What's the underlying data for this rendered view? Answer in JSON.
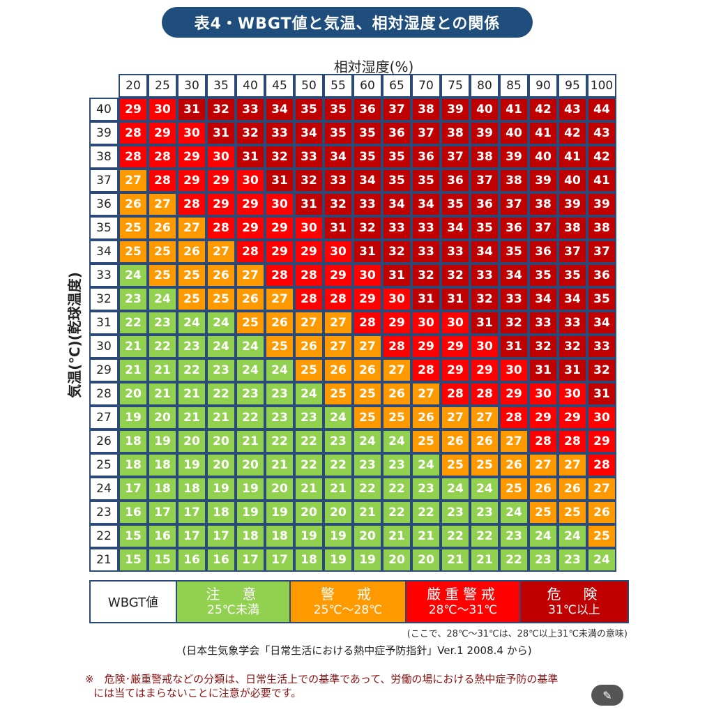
{
  "title": "表4・WBGT値と気温、相対湿度との関係",
  "x_axis_title": "相対湿度(%)",
  "y_axis_title": "気温(℃)(乾球温度)",
  "colors": {
    "caution": "#92d050",
    "warning": "#ff9900",
    "severe": "#ff0000",
    "danger": "#c00000",
    "grid_border": "#2b4a78",
    "title_bg": "#1f4e7c"
  },
  "chart_data": {
    "type": "heatmap",
    "title": "表4・WBGT値と気温、相対湿度との関係",
    "xlabel": "相対湿度(%)",
    "ylabel": "気温(℃)(乾球温度)",
    "x": [
      20,
      25,
      30,
      35,
      40,
      45,
      50,
      55,
      60,
      65,
      70,
      75,
      80,
      85,
      90,
      95,
      100
    ],
    "y": [
      40,
      39,
      38,
      37,
      36,
      35,
      34,
      33,
      32,
      31,
      30,
      29,
      28,
      27,
      26,
      25,
      24,
      23,
      22,
      21
    ],
    "values": [
      [
        29,
        30,
        31,
        32,
        33,
        34,
        35,
        35,
        36,
        37,
        38,
        39,
        40,
        41,
        42,
        43,
        44
      ],
      [
        28,
        29,
        30,
        31,
        32,
        33,
        34,
        35,
        35,
        36,
        37,
        38,
        39,
        40,
        41,
        42,
        43
      ],
      [
        28,
        28,
        29,
        30,
        31,
        32,
        33,
        34,
        35,
        35,
        36,
        37,
        38,
        39,
        40,
        41,
        42
      ],
      [
        27,
        28,
        29,
        29,
        30,
        31,
        32,
        33,
        34,
        35,
        35,
        36,
        37,
        38,
        39,
        40,
        41
      ],
      [
        26,
        27,
        28,
        29,
        29,
        30,
        31,
        32,
        33,
        34,
        34,
        35,
        36,
        37,
        38,
        39,
        39
      ],
      [
        25,
        26,
        27,
        28,
        29,
        29,
        30,
        31,
        32,
        33,
        33,
        34,
        35,
        36,
        37,
        38,
        38
      ],
      [
        25,
        25,
        26,
        27,
        28,
        29,
        29,
        30,
        31,
        32,
        33,
        33,
        34,
        35,
        36,
        37,
        37
      ],
      [
        24,
        25,
        25,
        26,
        27,
        28,
        28,
        29,
        30,
        31,
        32,
        32,
        33,
        34,
        35,
        35,
        36
      ],
      [
        23,
        24,
        25,
        25,
        26,
        27,
        28,
        28,
        29,
        30,
        31,
        31,
        32,
        33,
        34,
        34,
        35
      ],
      [
        22,
        23,
        24,
        24,
        25,
        26,
        27,
        27,
        28,
        29,
        30,
        30,
        31,
        32,
        33,
        33,
        34
      ],
      [
        21,
        22,
        23,
        24,
        24,
        25,
        26,
        27,
        27,
        28,
        29,
        29,
        30,
        31,
        32,
        32,
        33
      ],
      [
        21,
        21,
        22,
        23,
        24,
        24,
        25,
        26,
        26,
        27,
        28,
        29,
        29,
        30,
        31,
        31,
        32
      ],
      [
        20,
        21,
        21,
        22,
        23,
        23,
        24,
        25,
        25,
        26,
        27,
        28,
        28,
        29,
        30,
        30,
        31
      ],
      [
        19,
        20,
        21,
        21,
        22,
        23,
        23,
        24,
        25,
        25,
        26,
        27,
        27,
        28,
        29,
        29,
        30
      ],
      [
        18,
        19,
        20,
        20,
        21,
        22,
        22,
        23,
        24,
        24,
        25,
        26,
        26,
        27,
        28,
        28,
        29
      ],
      [
        18,
        18,
        19,
        20,
        20,
        21,
        22,
        22,
        23,
        23,
        24,
        25,
        25,
        26,
        27,
        27,
        28
      ],
      [
        17,
        18,
        18,
        19,
        19,
        20,
        21,
        21,
        22,
        22,
        23,
        24,
        24,
        25,
        26,
        26,
        27
      ],
      [
        16,
        17,
        17,
        18,
        19,
        19,
        20,
        20,
        21,
        22,
        22,
        23,
        23,
        24,
        25,
        25,
        26
      ],
      [
        15,
        16,
        17,
        17,
        18,
        18,
        19,
        19,
        20,
        21,
        21,
        22,
        22,
        23,
        24,
        24,
        25
      ],
      [
        15,
        15,
        16,
        16,
        17,
        17,
        18,
        19,
        19,
        20,
        20,
        21,
        21,
        22,
        23,
        23,
        24
      ]
    ],
    "thresholds": [
      {
        "max": 25,
        "category": "caution"
      },
      {
        "min": 25,
        "max": 28,
        "category": "warning"
      },
      {
        "min": 28,
        "max": 31,
        "category": "severe"
      },
      {
        "min": 31,
        "category": "danger"
      }
    ],
    "legend_position": "bottom",
    "grid": true
  },
  "legend": {
    "header": "WBGT値",
    "items": [
      {
        "key": "caution",
        "label": "注　意",
        "range": "25℃未満",
        "text_color": "#ffffff"
      },
      {
        "key": "warning",
        "label": "警　戒",
        "range": "25℃～28℃",
        "text_color": "#ffffff"
      },
      {
        "key": "severe",
        "label": "厳重警戒",
        "range": "28℃～31℃",
        "text_color": "#ffffff"
      },
      {
        "key": "danger",
        "label": "危　険",
        "range": "31℃以上",
        "text_color": "#ffffff"
      }
    ]
  },
  "notes": {
    "range_note": "(ここで、28℃～31℃は、28℃以上31℃未満の意味)",
    "source": "(日本生気象学会「日常生活における熱中症予防指針」Ver.1 2008.4 から)",
    "warning_line1": "※　危険･厳重警戒などの分類は、日常生活上での基準であって、労働の場における熱中症予防の基準",
    "warning_line2": "には当てはまらないことに注意が必要です。"
  },
  "fab": {
    "icon": "magic-wand-icon",
    "glyph": "✎"
  }
}
